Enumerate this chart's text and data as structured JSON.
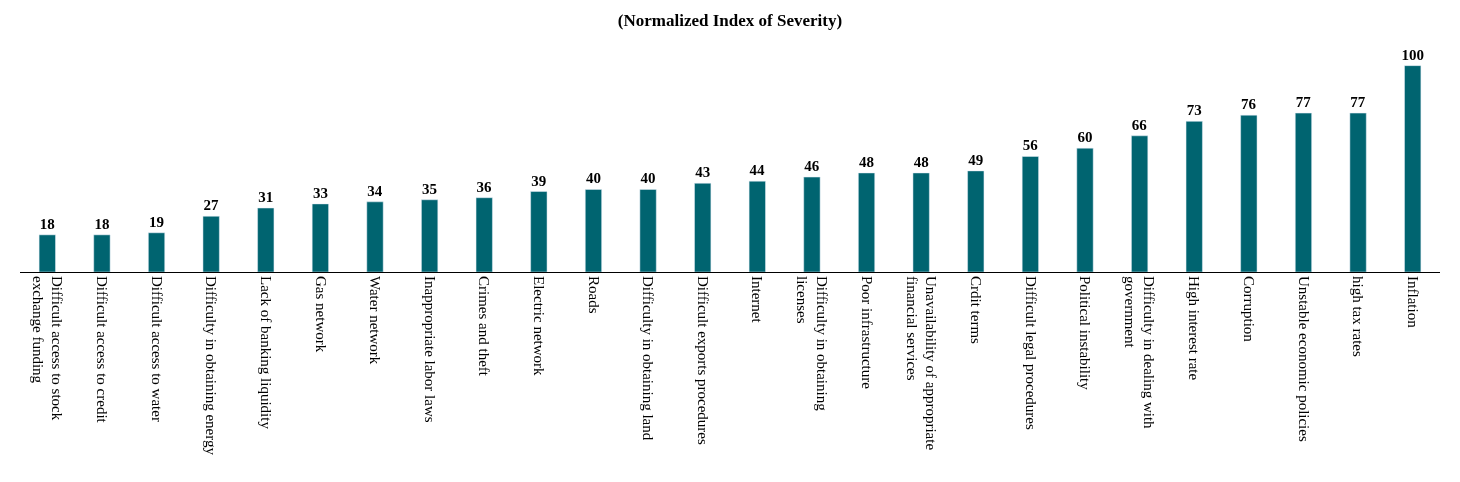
{
  "chart_data": {
    "type": "bar",
    "title": "(Normalized Index of Severity)",
    "categories": [
      "Difficult access to stock exchange funding",
      "Difficult access to credit",
      "Difficult access to water",
      "Difficulty in obtaining energy",
      "Lack of banking liquidity",
      "Gas network",
      "Water network",
      "Inappropriate labor laws",
      "Crimes and theft",
      "Electric network",
      "Roads",
      "Difficulty in obtaining land",
      "Difficult exports procedures",
      "Internet",
      "Difficulty in obtaining licenses",
      "Poor infrastructure",
      "Unavailability of appropriate financial services",
      "Crdit terms",
      "Difficult legal procedures",
      "Political instability",
      "Difficulty in dealing with government",
      "High interest rate",
      "Corruption",
      "Unstable economic policies",
      "high tax rates",
      "Inflation"
    ],
    "values": [
      18,
      18,
      19,
      27,
      31,
      33,
      34,
      35,
      36,
      39,
      40,
      40,
      43,
      44,
      46,
      48,
      48,
      49,
      56,
      60,
      66,
      73,
      76,
      77,
      77,
      100
    ],
    "color": "#006470",
    "data_labels": true
  }
}
